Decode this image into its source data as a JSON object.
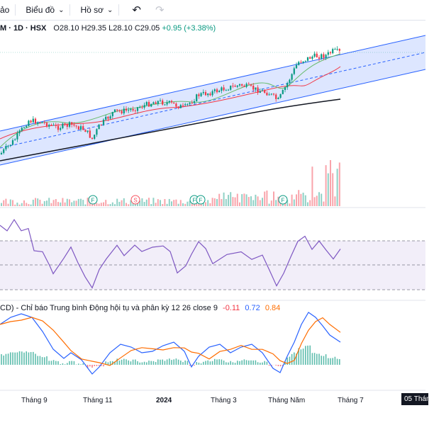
{
  "toolbar": {
    "partial_label": "ảo",
    "chart_menu": "Biểu đồ",
    "profile_menu": "Hồ sơ",
    "undo_icon": "undo-icon",
    "redo_icon": "redo-icon"
  },
  "legend": {
    "symbol": "M · 1D · HSX",
    "open": "O28.10",
    "high": "H29.35",
    "low": "L28.10",
    "close": "C29.05",
    "change": "+0.95 (+3.38%)"
  },
  "macd": {
    "label": "CD) - Chỉ báo Trung bình Động hội tụ và phân kỳ 12 26 close 9",
    "hist": "-0.11",
    "macd": "0.72",
    "signal": "0.84"
  },
  "x_axis": {
    "labels": [
      "Tháng 9",
      "Tháng 11",
      "2024",
      "Tháng 3",
      "Tháng Năm",
      "Tháng 7"
    ],
    "crosshair_date": "05 Tháng"
  },
  "events": [
    "F",
    "S",
    "F",
    "F",
    "F"
  ],
  "colors": {
    "up": "#089981",
    "down": "#f23645",
    "channel": "#2962ff",
    "rsi": "#7e57c2",
    "macd": "#2962ff",
    "signal": "#ff6d00"
  }
}
